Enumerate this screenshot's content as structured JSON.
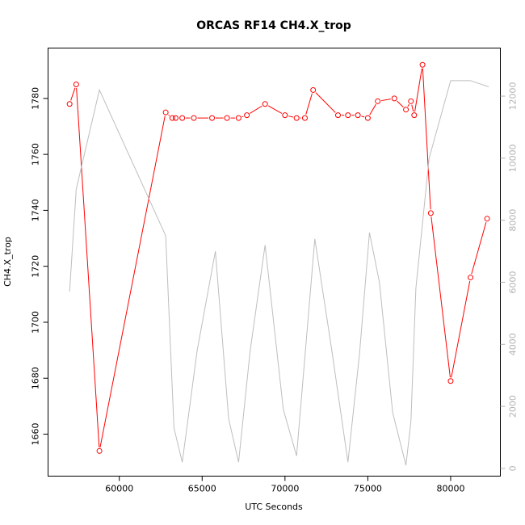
{
  "chart_data": {
    "type": "line",
    "title": "ORCAS RF14 CH4.X_trop",
    "xlabel": "UTC Seconds",
    "ylabel": "CH4.X_trop",
    "xlim": [
      55700,
      83000
    ],
    "ylim": [
      1645,
      1798
    ],
    "y2lim": [
      -250,
      13550
    ],
    "x_ticks": [
      60000,
      65000,
      70000,
      75000,
      80000
    ],
    "y_ticks": [
      1660,
      1680,
      1700,
      1720,
      1740,
      1760,
      1780
    ],
    "y2_ticks": [
      0,
      2000,
      4000,
      6000,
      8000,
      10000,
      12000
    ],
    "grid": false,
    "series": [
      {
        "axis": "left",
        "color": "#ff0000",
        "marker": "open-circle",
        "x": [
          57000,
          57400,
          58800,
          62800,
          63200,
          63400,
          63800,
          64500,
          65600,
          66500,
          67200,
          67700,
          68800,
          70000,
          70700,
          71200,
          71700,
          73200,
          73800,
          74400,
          75000,
          75600,
          76600,
          77300,
          77600,
          77800,
          78300,
          78800,
          80000,
          81200,
          82200
        ],
        "y": [
          1778,
          1785,
          1654,
          1775,
          1773,
          1773,
          1773,
          1773,
          1773,
          1773,
          1773,
          1774,
          1778,
          1774,
          1773,
          1773,
          1783,
          1774,
          1774,
          1774,
          1773,
          1779,
          1780,
          1776,
          1779,
          1774,
          1792,
          1739,
          1679,
          1716,
          1737
        ]
      },
      {
        "axis": "right",
        "color": "#bebebe",
        "marker": "none",
        "x": [
          57000,
          57400,
          58800,
          62800,
          63300,
          63800,
          64700,
          65800,
          66600,
          67200,
          67900,
          68800,
          69900,
          70700,
          71800,
          72800,
          73800,
          74500,
          75100,
          75700,
          76500,
          77300,
          77600,
          77900,
          78700,
          80000,
          81200,
          82300
        ],
        "y": [
          5700,
          9000,
          12200,
          7500,
          1300,
          200,
          3800,
          7000,
          1600,
          200,
          3800,
          7200,
          1900,
          400,
          7400,
          3900,
          200,
          3700,
          7600,
          6000,
          1800,
          100,
          1500,
          5800,
          10000,
          12500,
          12500,
          12300
        ]
      }
    ]
  }
}
